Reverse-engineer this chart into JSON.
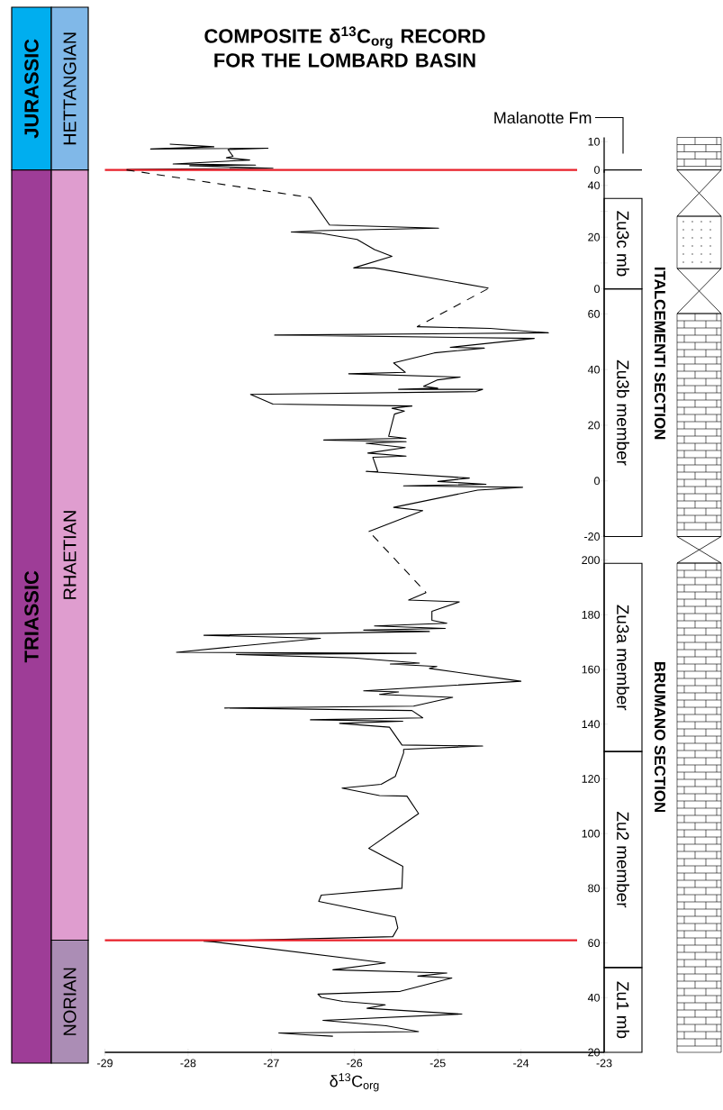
{
  "chart_data": [
    {
      "type": "line",
      "title": "COMPOSITE δ$^{13}$C$_{org}$ RECORD FOR THE LOMBARD BASIN",
      "xlim": [
        -29,
        -23
      ],
      "ylim": [
        -1,
        11.5
      ],
      "yticks": [
        0,
        10
      ],
      "tick_labels": "y",
      "series": [
        {
          "color": "#000000",
          "line_style": "solid",
          "x": [
            -28.22,
            -27.69,
            -28.45,
            -27.04,
            -27.52,
            -27.46,
            -27.54,
            -27.26,
            -28.18,
            -27.19,
            -27.98,
            -26.98,
            -28.74
          ],
          "values": [
            9.1,
            8.2,
            7.4,
            7.7,
            7.2,
            4.8,
            4.3,
            3.5,
            2.1,
            1.7,
            1.5,
            0.6,
            0.2
          ]
        }
      ],
      "ref_lines": [
        {
          "axis": "y",
          "value": 0,
          "color": "#e8202a"
        }
      ]
    },
    {
      "type": "line",
      "xlim": [
        -29,
        -23
      ],
      "ylim": [
        0,
        46
      ],
      "yticks": [
        0,
        {
          "value": 10,
          "label": null
        },
        20,
        {
          "value": 30,
          "label": null
        },
        40
      ],
      "tick_labels": "y",
      "series": [
        {
          "color": "#000000",
          "line_style": "dashed",
          "x": [
            -28.74,
            -26.53
          ],
          "values": [
            46,
            35.3
          ]
        },
        {
          "color": "#000000",
          "line_style": "solid",
          "x": [
            -26.53,
            -26.3,
            -24.99,
            -26.42,
            -26.76,
            -26.4,
            -25.97,
            -25.76,
            -25.55,
            -26.01,
            -25.76,
            -24.39
          ],
          "values": [
            35.3,
            24.7,
            23.5,
            22.5,
            22.0,
            21.5,
            19.1,
            15.2,
            12.6,
            8.1,
            8.1,
            0.3
          ]
        }
      ]
    },
    {
      "type": "line",
      "xlim": [
        -29,
        -23
      ],
      "ylim": [
        -20,
        69
      ],
      "yticks": [
        -20,
        0,
        20,
        40,
        60
      ],
      "tick_labels": "y",
      "series": [
        {
          "color": "#000000",
          "line_style": "dashed",
          "x": [
            -24.4,
            -25.25
          ],
          "values": [
            69,
            55.4
          ]
        },
        {
          "color": "#000000",
          "line_style": "solid",
          "x": [
            -25.25,
            -24.37,
            -23.67,
            -26.96,
            -23.84,
            -24.85,
            -24.44,
            -25.04,
            -25.53,
            -25.39,
            -26.07,
            -24.73,
            -25.0,
            -25.17,
            -25.0,
            -25.47,
            -24.46,
            -24.54,
            -27.25,
            -26.98,
            -25.31,
            -25.55,
            -25.4,
            -25.52,
            -25.59,
            -25.38,
            -26.37,
            -25.38,
            -25.86,
            -25.39,
            -25.84,
            -25.38,
            -25.78,
            -25.72,
            -25.86,
            -24.62,
            -25.0,
            -24.42,
            -25.41,
            -23.98,
            -24.52,
            -25.53,
            -25.18,
            -25.83
          ],
          "values": [
            55.4,
            54.8,
            53.2,
            52.4,
            51.2,
            48.0,
            47.7,
            46.0,
            42.4,
            39.0,
            38.5,
            37.3,
            36.3,
            34.0,
            33.3,
            32.9,
            32.9,
            32.1,
            31.1,
            27.6,
            26.9,
            26.1,
            25.1,
            24.0,
            16.0,
            15.3,
            14.7,
            14.1,
            13.5,
            12.0,
            10.0,
            8.9,
            8.5,
            3.3,
            3.4,
            1.0,
            -0.2,
            -1.2,
            -1.8,
            -2.3,
            -3.3,
            -9.5,
            -10.7,
            -18.2
          ]
        }
      ],
      "annotations": [
        "ITALCEMENTI SECTION"
      ]
    },
    {
      "type": "line",
      "xlim": [
        -29,
        -23
      ],
      "ylim": [
        20,
        209
      ],
      "xticks": [
        -29,
        -28,
        -27,
        -26,
        -25,
        -24,
        -23
      ],
      "yticks": [
        20,
        40,
        60,
        80,
        100,
        120,
        140,
        160,
        180,
        200
      ],
      "xlabel": "δ$^{13}$C$_{org}$",
      "series": [
        {
          "color": "#000000",
          "line_style": "dashed",
          "x": [
            -25.78,
            -25.14
          ],
          "values": [
            209,
            188.1
          ]
        },
        {
          "color": "#000000",
          "line_style": "solid",
          "x": [
            -25.14,
            -25.35,
            -24.74,
            -25.07,
            -25.07,
            -24.89,
            -25.76,
            -24.91,
            -25.89,
            -25.1,
            -27.81,
            -26.41,
            -28.14,
            -25.26,
            -27.42,
            -26.01,
            -25.22,
            -25.57,
            -25.01,
            -25.1,
            -24.0,
            -25.89,
            -25.47,
            -25.7,
            -24.82,
            -25.29,
            -27.56,
            -25.31,
            -25.18,
            -26.53,
            -25.42,
            -26.18,
            -25.58,
            -25.43,
            -24.46,
            -25.41,
            -25.41,
            -25.51,
            -25.68,
            -26.15,
            -25.7,
            -25.37,
            -25.23,
            -25.83,
            -25.42,
            -25.43,
            -26.4,
            -26.43,
            -25.51,
            -25.48,
            -25.54,
            -27.81,
            -27.69,
            -25.63,
            -26.26,
            -24.89,
            -25.24,
            -24.83,
            -25.45,
            -26.44,
            -26.4,
            -26.14,
            -25.63,
            -25.85,
            -24.71,
            -26.38,
            -25.62,
            -25.23,
            -26.91,
            -26.64,
            -26.26
          ],
          "values": [
            188.1,
            185.4,
            184.7,
            181.3,
            178.0,
            176.9,
            175.9,
            175.0,
            174.4,
            173.9,
            172.5,
            171.4,
            166.3,
            165.9,
            165.5,
            164.2,
            162.3,
            162.0,
            161.1,
            160.4,
            155.7,
            152.2,
            151.8,
            150.9,
            149.8,
            146.6,
            145.9,
            145.0,
            142.3,
            141.6,
            141.1,
            140.3,
            138.9,
            132.4,
            132.0,
            130.8,
            129.5,
            120.9,
            118.0,
            116.6,
            113.9,
            113.7,
            107.3,
            94.6,
            88.0,
            80.0,
            77.5,
            75.2,
            69.5,
            65.5,
            62.3,
            60.6,
            60.4,
            52.7,
            50.2,
            49.0,
            47.9,
            47.2,
            42.3,
            41.3,
            40.1,
            38.6,
            37.4,
            36.1,
            34.0,
            31.7,
            29.7,
            27.6,
            27.1,
            26.5,
            25.9
          ]
        }
      ],
      "ref_lines": [
        {
          "axis": "y",
          "value": 61,
          "color": "#e8202a"
        }
      ],
      "annotations": [
        "BRUMANO SECTION"
      ]
    },
    {
      "type": "other",
      "categories": [
        "JURASSIC",
        "HETTANGIAN",
        "TRIASSIC",
        "RHAETIAN",
        "NORIAN"
      ],
      "colors": [
        "#00aeef",
        "#80b8e8",
        "#9e3d97",
        "#df9dcf",
        "#ab8db5"
      ]
    },
    {
      "type": "other",
      "categories": [
        "Malanotte Fm",
        "Zu3c mb",
        "Zu3b member",
        "Zu3a member",
        "Zu2 member",
        "Zu1 mb"
      ]
    }
  ]
}
